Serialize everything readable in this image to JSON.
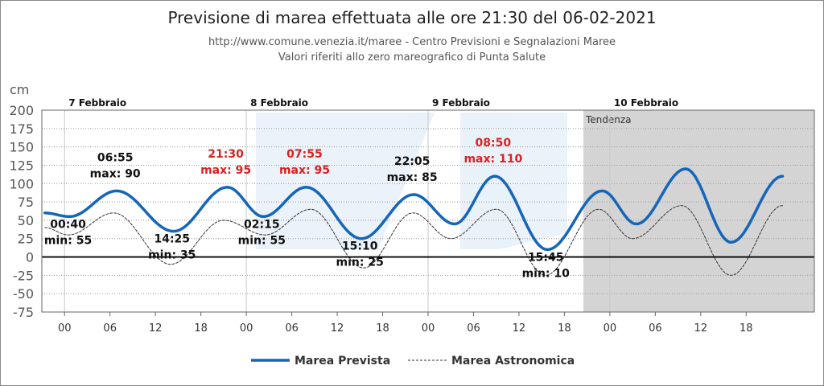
{
  "chart_data": {
    "type": "line",
    "title": "Previsione di marea effettuata alle ore 21:30 del 06-02-2021",
    "subtitle": [
      "http://www.comune.venezia.it/maree - Centro Previsioni e Segnalazioni Maree",
      "Valori riferiti allo zero mareografico di Punta Salute"
    ],
    "ylabel": "cm",
    "ylim": [
      -75,
      200
    ],
    "yticks": [
      200,
      175,
      150,
      125,
      100,
      75,
      50,
      25,
      0,
      -25,
      -50,
      -75
    ],
    "xlim_hours": [
      -3,
      99
    ],
    "xticks": [
      {
        "h": 0,
        "label": "00"
      },
      {
        "h": 6,
        "label": "06"
      },
      {
        "h": 12,
        "label": "12"
      },
      {
        "h": 18,
        "label": "18"
      },
      {
        "h": 24,
        "label": "00"
      },
      {
        "h": 30,
        "label": "06"
      },
      {
        "h": 36,
        "label": "12"
      },
      {
        "h": 42,
        "label": "18"
      },
      {
        "h": 48,
        "label": "00"
      },
      {
        "h": 54,
        "label": "06"
      },
      {
        "h": 60,
        "label": "12"
      },
      {
        "h": 66,
        "label": "18"
      },
      {
        "h": 72,
        "label": "00"
      },
      {
        "h": 78,
        "label": "06"
      },
      {
        "h": 84,
        "label": "12"
      },
      {
        "h": 90,
        "label": "18"
      }
    ],
    "days": [
      {
        "h": 0,
        "label": "7 Febbraio"
      },
      {
        "h": 24,
        "label": "8 Febbraio"
      },
      {
        "h": 48,
        "label": "9 Febbraio"
      },
      {
        "h": 72,
        "label": "10 Febbraio"
      }
    ],
    "trend_zone": {
      "start_h": 68.5,
      "label": "Tendenza",
      "color": "#d4d4d4"
    },
    "series": [
      {
        "name": "Marea Prevista",
        "color": "#1565b8",
        "style": "solid",
        "points": [
          [
            -2.6,
            60
          ],
          [
            0.67,
            55
          ],
          [
            6.9,
            90
          ],
          [
            14.4,
            35
          ],
          [
            21.5,
            95
          ],
          [
            26.25,
            55
          ],
          [
            31.9,
            95
          ],
          [
            39.2,
            25
          ],
          [
            46.1,
            85
          ],
          [
            51.5,
            45
          ],
          [
            56.8,
            110
          ],
          [
            63.75,
            10
          ],
          [
            71.0,
            90
          ],
          [
            75.5,
            45
          ],
          [
            82.0,
            120
          ],
          [
            88.0,
            20
          ],
          [
            94.8,
            110
          ]
        ]
      },
      {
        "name": "Marea Astronomica",
        "color": "#333333",
        "style": "dashed",
        "points": [
          [
            -2.6,
            40
          ],
          [
            0.5,
            30
          ],
          [
            6.5,
            60
          ],
          [
            14.0,
            -10
          ],
          [
            21.0,
            50
          ],
          [
            26.5,
            30
          ],
          [
            32.5,
            65
          ],
          [
            39.5,
            -15
          ],
          [
            46.0,
            60
          ],
          [
            51.0,
            25
          ],
          [
            57.0,
            65
          ],
          [
            63.5,
            -25
          ],
          [
            70.5,
            65
          ],
          [
            75.0,
            25
          ],
          [
            81.5,
            70
          ],
          [
            88.0,
            -25
          ],
          [
            94.8,
            70
          ]
        ]
      }
    ],
    "annotations": [
      {
        "time": "00:40",
        "label": "min: 55",
        "h": 0.67,
        "v": 55,
        "kind": "min",
        "highlight": false
      },
      {
        "time": "06:55",
        "label": "max: 90",
        "h": 6.9,
        "v": 90,
        "kind": "max",
        "highlight": false
      },
      {
        "time": "14:25",
        "label": "min: 35",
        "h": 14.4,
        "v": 35,
        "kind": "min",
        "highlight": false
      },
      {
        "time": "21:30",
        "label": "max: 95",
        "h": 21.5,
        "v": 95,
        "kind": "max",
        "highlight": true
      },
      {
        "time": "02:15",
        "label": "min: 55",
        "h": 26.25,
        "v": 55,
        "kind": "min",
        "highlight": false
      },
      {
        "time": "07:55",
        "label": "max: 95",
        "h": 31.9,
        "v": 95,
        "kind": "max",
        "highlight": true
      },
      {
        "time": "15:10",
        "label": "min: 25",
        "h": 39.2,
        "v": 25,
        "kind": "min",
        "highlight": false
      },
      {
        "time": "22:05",
        "label": "max: 85",
        "h": 46.1,
        "v": 85,
        "kind": "max",
        "highlight": false
      },
      {
        "time": "08:50",
        "label": "max: 110",
        "h": 56.8,
        "v": 110,
        "kind": "max",
        "highlight": true
      },
      {
        "time": "15:45",
        "label": "min: 10",
        "h": 63.75,
        "v": 10,
        "kind": "min",
        "highlight": false
      }
    ],
    "legend": [
      "Marea Prevista",
      "Marea Astronomica"
    ]
  }
}
